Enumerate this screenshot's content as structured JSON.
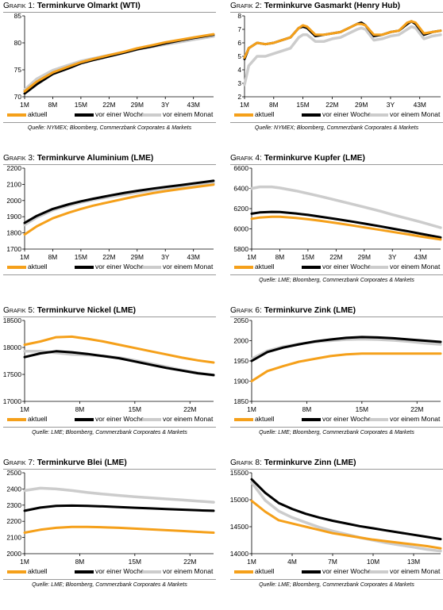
{
  "colors": {
    "aktuell": "#f5a01a",
    "vor_einer_woche": "#000000",
    "vor_einem_monat": "#cccccc"
  },
  "legend": {
    "aktuell": "aktuell",
    "vor_einer_woche": "vor einer Woche",
    "vor_einem_monat": "vor einem Monat"
  },
  "panels": [
    {
      "prefix": "Grafik 1: ",
      "name": "Terminkurve Olmarkt (WTI)",
      "source": "Quelle: NYMEX; Bloomberg, Commerzbank Corporates & Markets"
    },
    {
      "prefix": "Grafik 2: ",
      "name": "Terminkurve Gasmarkt (Henry Hub)",
      "source": "Quelle: NYMEX; Bloomberg, Commerzbank Corporates & Markets"
    },
    {
      "prefix": "Grafik 3: ",
      "name": "Terminkurve Aluminium (LME)",
      "source": ""
    },
    {
      "prefix": "Grafik 4: ",
      "name": "Terminkurve Kupfer (LME)",
      "source": "Quelle: LME; Bloomberg, Commerzbank Corporates & Markets"
    },
    {
      "prefix": "Grafik 5: ",
      "name": "Terminkurve Nickel (LME)",
      "source": "Quelle: LME; Bloomberg, Commerzbank Corporates & Markets"
    },
    {
      "prefix": "Grafik 6: ",
      "name": "Terminkurve Zink (LME)",
      "source": "Quelle: LME; Bloomberg, Commerzbank Corporates & Markets"
    },
    {
      "prefix": "Grafik 7: ",
      "name": "Terminkurve Blei (LME)",
      "source": "Quelle: LME; Bloomberg, Commerzbank Corporates & Markets"
    },
    {
      "prefix": "Grafik 8: ",
      "name": "Terminkurve Zinn (LME)",
      "source": "Quelle: LME; Bloomberg, Commerzbank Corporates & Markets"
    }
  ],
  "chart_data": [
    {
      "type": "line",
      "title": "Grafik 1: Terminkurve Olmarkt (WTI)",
      "x": [
        1,
        4,
        8,
        12,
        15,
        18,
        22,
        26,
        29,
        33,
        36,
        40,
        43,
        48
      ],
      "xticks": [
        1,
        8,
        15,
        22,
        29,
        36,
        43
      ],
      "xticklabels": [
        "1M",
        "8M",
        "15M",
        "22M",
        "29M",
        "3Y",
        "43M"
      ],
      "xlim": [
        1,
        48
      ],
      "ylim": [
        70,
        85
      ],
      "yticks": [
        70,
        75,
        80,
        85
      ],
      "series": [
        {
          "name": "aktuell",
          "values": [
            71.0,
            72.8,
            74.5,
            75.6,
            76.4,
            77.0,
            77.7,
            78.4,
            79.0,
            79.6,
            80.1,
            80.6,
            81.0,
            81.6
          ]
        },
        {
          "name": "vor einer Woche",
          "values": [
            70.6,
            72.3,
            74.2,
            75.3,
            76.2,
            76.8,
            77.5,
            78.2,
            78.8,
            79.4,
            79.9,
            80.5,
            80.9,
            81.5
          ]
        },
        {
          "name": "vor einem Monat",
          "values": [
            71.3,
            73.3,
            74.9,
            75.9,
            76.6,
            77.1,
            77.7,
            78.3,
            78.8,
            79.3,
            79.7,
            80.2,
            80.6,
            81.2
          ]
        }
      ]
    },
    {
      "type": "line",
      "title": "Grafik 2: Terminkurve Gasmarkt (Henry Hub)",
      "x": [
        1,
        2,
        4,
        6,
        8,
        10,
        12,
        14,
        15,
        16,
        18,
        20,
        22,
        24,
        26,
        28,
        29,
        30,
        32,
        34,
        36,
        38,
        40,
        41,
        42,
        44,
        46,
        48
      ],
      "xticks": [
        1,
        8,
        15,
        22,
        29,
        36,
        43
      ],
      "xticklabels": [
        "1M",
        "8M",
        "15M",
        "22M",
        "29M",
        "3Y",
        "43M"
      ],
      "xlim": [
        1,
        48
      ],
      "ylim": [
        2,
        8
      ],
      "yticks": [
        2,
        3,
        4,
        5,
        6,
        7,
        8
      ],
      "series": [
        {
          "name": "aktuell",
          "values": [
            4.9,
            5.6,
            6.0,
            5.9,
            6.0,
            6.2,
            6.4,
            7.1,
            7.3,
            7.2,
            6.6,
            6.6,
            6.7,
            6.8,
            7.1,
            7.4,
            7.4,
            7.3,
            6.6,
            6.6,
            6.8,
            6.9,
            7.5,
            7.6,
            7.5,
            6.7,
            6.8,
            6.9
          ]
        },
        {
          "name": "vor einer Woche",
          "values": [
            4.8,
            5.6,
            6.0,
            5.9,
            6.0,
            6.2,
            6.4,
            7.1,
            7.2,
            7.1,
            6.5,
            6.6,
            6.7,
            6.8,
            7.1,
            7.4,
            7.5,
            7.3,
            6.5,
            6.6,
            6.8,
            6.9,
            7.4,
            7.6,
            7.4,
            6.6,
            6.8,
            6.9
          ]
        },
        {
          "name": "vor einem Monat",
          "values": [
            2.9,
            4.3,
            5.0,
            5.0,
            5.2,
            5.4,
            5.6,
            6.4,
            6.6,
            6.6,
            6.1,
            6.1,
            6.3,
            6.4,
            6.7,
            7.0,
            7.1,
            7.0,
            6.2,
            6.3,
            6.5,
            6.6,
            7.0,
            7.2,
            7.1,
            6.3,
            6.5,
            6.6
          ]
        }
      ]
    },
    {
      "type": "line",
      "title": "Grafik 3: Terminkurve Aluminium (LME)",
      "x": [
        1,
        4,
        8,
        12,
        15,
        18,
        22,
        26,
        29,
        33,
        36,
        40,
        43,
        48
      ],
      "xticks": [
        1,
        8,
        15,
        22,
        29,
        36,
        43
      ],
      "xticklabels": [
        "1M",
        "8M",
        "15M",
        "22M",
        "29M",
        "3Y",
        "43M"
      ],
      "xlim": [
        1,
        48
      ],
      "ylim": [
        1700,
        2200
      ],
      "yticks": [
        1700,
        1800,
        1900,
        2000,
        2100,
        2200
      ],
      "series": [
        {
          "name": "aktuell",
          "values": [
            1790,
            1840,
            1890,
            1925,
            1948,
            1968,
            1990,
            2012,
            2028,
            2046,
            2058,
            2072,
            2082,
            2098
          ]
        },
        {
          "name": "vor einer Woche",
          "values": [
            1862,
            1905,
            1948,
            1977,
            1995,
            2011,
            2030,
            2048,
            2060,
            2074,
            2084,
            2096,
            2106,
            2122
          ]
        },
        {
          "name": "vor einem Monat",
          "values": [
            1850,
            1895,
            1940,
            1970,
            1988,
            2004,
            2022,
            2038,
            2050,
            2064,
            2074,
            2086,
            2094,
            2108
          ]
        }
      ]
    },
    {
      "type": "line",
      "title": "Grafik 4: Terminkurve Kupfer (LME)",
      "x": [
        1,
        3,
        6,
        8,
        12,
        15,
        18,
        22,
        26,
        29,
        33,
        36,
        40,
        43,
        48
      ],
      "xticks": [
        1,
        8,
        15,
        22,
        29,
        36,
        43
      ],
      "xticklabels": [
        "1M",
        "8M",
        "15M",
        "22M",
        "29M",
        "3Y",
        "43M"
      ],
      "xlim": [
        1,
        48
      ],
      "ylim": [
        5800,
        6600
      ],
      "yticks": [
        5800,
        6000,
        6200,
        6400,
        6600
      ],
      "series": [
        {
          "name": "aktuell",
          "values": [
            6100,
            6112,
            6120,
            6120,
            6108,
            6095,
            6080,
            6058,
            6034,
            6014,
            5990,
            5970,
            5945,
            5925,
            5895
          ]
        },
        {
          "name": "vor einer Woche",
          "values": [
            6150,
            6162,
            6168,
            6166,
            6152,
            6138,
            6121,
            6097,
            6072,
            6052,
            6025,
            6003,
            5975,
            5952,
            5915
          ]
        },
        {
          "name": "vor einem Monat",
          "values": [
            6400,
            6415,
            6415,
            6405,
            6376,
            6350,
            6322,
            6284,
            6245,
            6215,
            6175,
            6140,
            6100,
            6068,
            6012
          ]
        }
      ]
    },
    {
      "type": "line",
      "title": "Grafik 5: Terminkurve Nickel (LME)",
      "x": [
        1,
        3,
        5,
        7,
        9,
        11,
        13,
        15,
        17,
        19,
        21,
        23,
        25
      ],
      "xticks": [
        1,
        8,
        15,
        22
      ],
      "xticklabels": [
        "1M",
        "8M",
        "15M",
        "22M"
      ],
      "xlim": [
        1,
        25
      ],
      "ylim": [
        17000,
        18500
      ],
      "yticks": [
        17000,
        17500,
        18000,
        18500
      ],
      "series": [
        {
          "name": "aktuell",
          "values": [
            18050,
            18110,
            18190,
            18200,
            18160,
            18110,
            18050,
            17990,
            17930,
            17870,
            17810,
            17760,
            17720
          ]
        },
        {
          "name": "vor einer Woche",
          "values": [
            17820,
            17890,
            17930,
            17910,
            17880,
            17840,
            17800,
            17740,
            17680,
            17620,
            17570,
            17520,
            17490
          ]
        },
        {
          "name": "vor einem Monat",
          "values": [
            17930,
            17930,
            17900,
            17870,
            17860,
            17840,
            17810,
            17760,
            17700,
            17640,
            17580,
            17530,
            17480
          ]
        }
      ]
    },
    {
      "type": "line",
      "title": "Grafik 6: Terminkurve Zink (LME)",
      "x": [
        1,
        3,
        5,
        7,
        9,
        11,
        13,
        15,
        17,
        19,
        21,
        23,
        25
      ],
      "xticks": [
        1,
        8,
        15,
        22
      ],
      "xticklabels": [
        "1M",
        "8M",
        "15M",
        "22M"
      ],
      "xlim": [
        1,
        25
      ],
      "ylim": [
        1850,
        2050
      ],
      "yticks": [
        1850,
        1900,
        1950,
        2000,
        2050
      ],
      "series": [
        {
          "name": "aktuell",
          "values": [
            1900,
            1925,
            1937,
            1948,
            1955,
            1962,
            1966,
            1968,
            1968,
            1968,
            1968,
            1968,
            1968
          ]
        },
        {
          "name": "vor einer Woche",
          "values": [
            1950,
            1972,
            1983,
            1991,
            1998,
            2003,
            2007,
            2009,
            2008,
            2006,
            2003,
            2000,
            1997
          ]
        },
        {
          "name": "vor einem Monat",
          "values": [
            1955,
            1975,
            1985,
            1992,
            1997,
            2000,
            2003,
            2004,
            2003,
            2001,
            1998,
            1994,
            1991
          ]
        }
      ]
    },
    {
      "type": "line",
      "title": "Grafik 7: Terminkurve Blei (LME)",
      "x": [
        1,
        3,
        5,
        7,
        9,
        11,
        13,
        15,
        17,
        19,
        21,
        23,
        25
      ],
      "xticks": [
        1,
        8,
        15,
        22
      ],
      "xticklabels": [
        "1M",
        "8M",
        "15M",
        "22M"
      ],
      "xlim": [
        1,
        25
      ],
      "ylim": [
        2000,
        2500
      ],
      "yticks": [
        2000,
        2100,
        2200,
        2300,
        2400,
        2500
      ],
      "series": [
        {
          "name": "aktuell",
          "values": [
            2130,
            2148,
            2160,
            2165,
            2165,
            2163,
            2160,
            2155,
            2150,
            2145,
            2140,
            2135,
            2130
          ]
        },
        {
          "name": "vor einer Woche",
          "values": [
            2265,
            2285,
            2295,
            2297,
            2295,
            2292,
            2288,
            2284,
            2280,
            2276,
            2272,
            2268,
            2265
          ]
        },
        {
          "name": "vor einem Monat",
          "values": [
            2390,
            2405,
            2400,
            2390,
            2378,
            2368,
            2360,
            2352,
            2345,
            2338,
            2332,
            2325,
            2318
          ]
        }
      ]
    },
    {
      "type": "line",
      "title": "Grafik 8: Terminkurve Zinn (LME)",
      "x": [
        1,
        2,
        3,
        4,
        5,
        6,
        7,
        8,
        9,
        10,
        11,
        12,
        13,
        14,
        15
      ],
      "xticks": [
        1,
        4,
        7,
        10,
        13
      ],
      "xticklabels": [
        "1M",
        "4M",
        "7M",
        "10M",
        "13M"
      ],
      "xlim": [
        1,
        15
      ],
      "ylim": [
        14000,
        15500
      ],
      "yticks": [
        14000,
        14500,
        15000,
        15500
      ],
      "series": [
        {
          "name": "aktuell",
          "values": [
            14980,
            14780,
            14620,
            14560,
            14500,
            14440,
            14380,
            14340,
            14300,
            14260,
            14230,
            14200,
            14170,
            14140,
            14100
          ]
        },
        {
          "name": "vor einer Woche",
          "values": [
            15380,
            15130,
            14940,
            14830,
            14740,
            14670,
            14610,
            14560,
            14510,
            14470,
            14430,
            14390,
            14350,
            14310,
            14270
          ]
        },
        {
          "name": "vor einem Monat",
          "values": [
            15320,
            14990,
            14790,
            14670,
            14580,
            14490,
            14420,
            14360,
            14300,
            14250,
            14200,
            14160,
            14120,
            14080,
            14050
          ]
        }
      ]
    }
  ]
}
